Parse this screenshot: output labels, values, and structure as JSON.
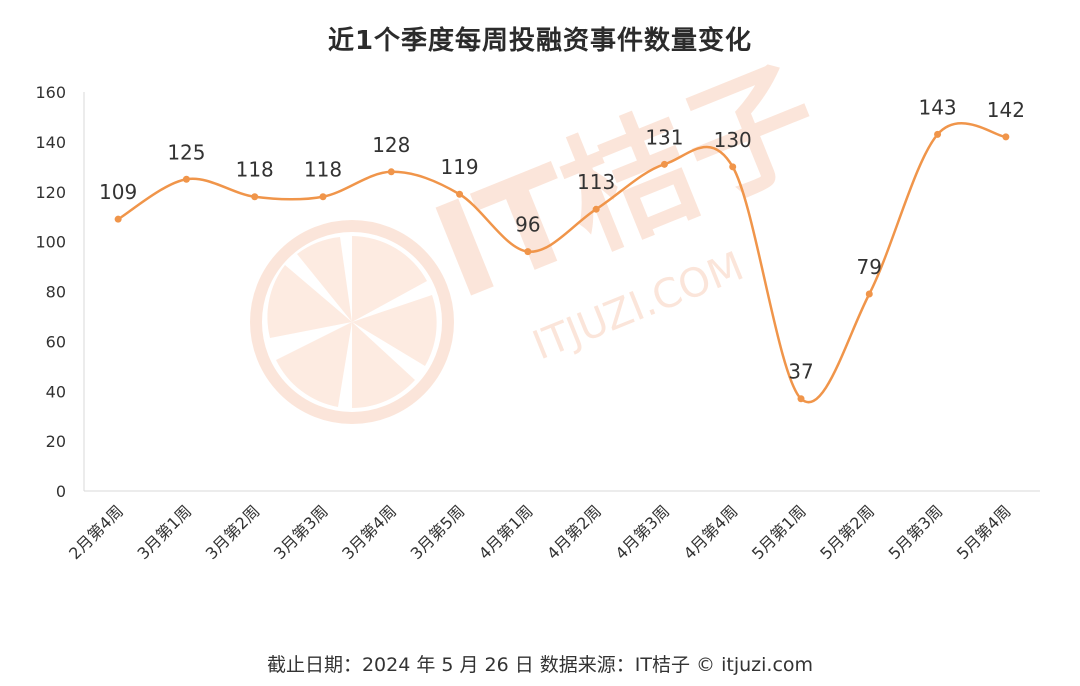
{
  "chart_data": {
    "type": "line",
    "title": "近1个季度每周投融资事件数量变化",
    "categories": [
      "2月第4周",
      "3月第1周",
      "3月第2周",
      "3月第3周",
      "3月第4周",
      "3月第5周",
      "4月第1周",
      "4月第2周",
      "4月第3周",
      "4月第4周",
      "5月第1周",
      "5月第2周",
      "5月第3周",
      "5月第4周"
    ],
    "series": [
      {
        "values": [
          109,
          125,
          118,
          118,
          128,
          119,
          96,
          113,
          131,
          130,
          37,
          79,
          143,
          142
        ]
      }
    ],
    "data_labels": [
      "109",
      "125",
      "118",
      "118",
      "128",
      "119",
      "96",
      "113",
      "131",
      "130",
      "37",
      "79",
      "143",
      "142"
    ],
    "yticks": [
      "0",
      "20",
      "40",
      "60",
      "80",
      "100",
      "120",
      "140",
      "160"
    ],
    "ylim": [
      0,
      160
    ],
    "xlabel": "",
    "ylabel": "",
    "grid": false,
    "line_color": "#f0954a",
    "smooth": true
  },
  "watermark": {
    "brand": "IT桔子",
    "url": "ITJUZI.COM",
    "color": "#fbe3d6"
  },
  "footer": {
    "text": "截止日期：2024 年 5 月 26 日    数据来源：IT桔子 © itjuzi.com"
  }
}
